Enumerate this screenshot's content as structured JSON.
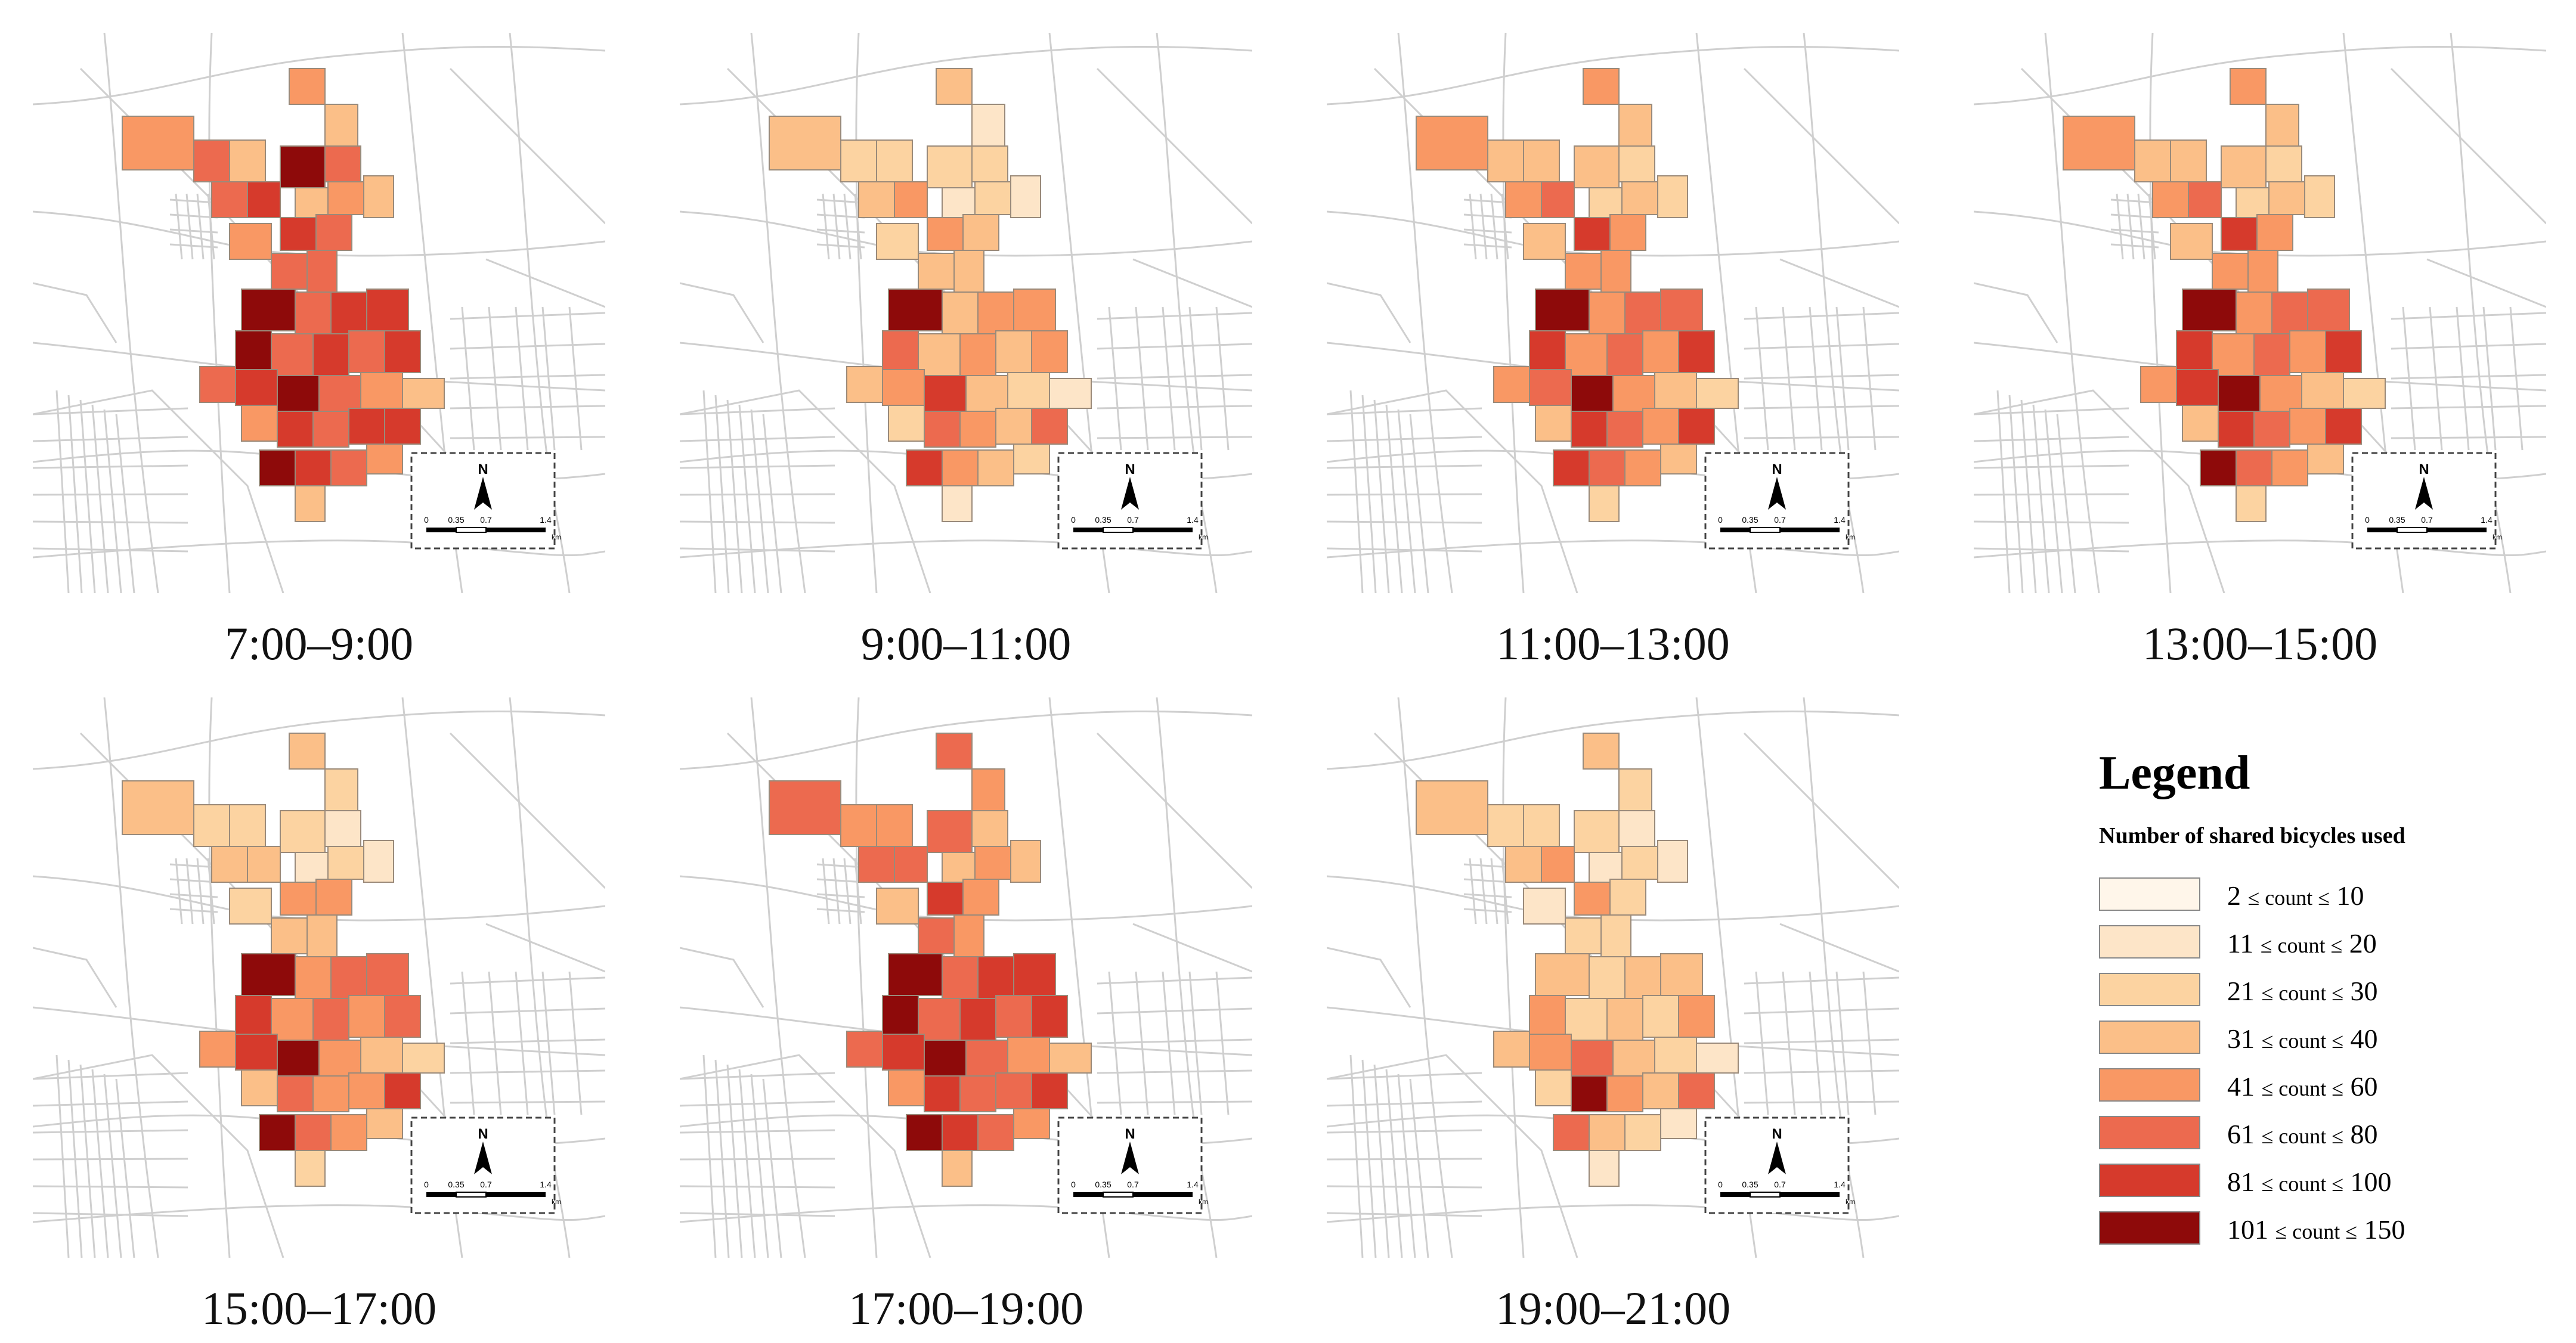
{
  "panels": [
    {
      "caption": "7:00–9:00"
    },
    {
      "caption": "9:00–11:00"
    },
    {
      "caption": "11:00–13:00"
    },
    {
      "caption": "13:00–15:00"
    },
    {
      "caption": "15:00–17:00"
    },
    {
      "caption": "17:00–19:00"
    },
    {
      "caption": "19:00–21:00"
    }
  ],
  "inset": {
    "north_label": "N",
    "scale_ticks": [
      "0",
      "0.35",
      "0.7",
      "1.4"
    ],
    "scale_unit": "km"
  },
  "legend": {
    "title": "Legend",
    "subtitle": "Number of shared bicycles used",
    "items": [
      {
        "low": "2",
        "op": "≤ count ≤",
        "high": "10",
        "color": "#fff6ea"
      },
      {
        "low": "11",
        "op": "≤ count ≤",
        "high": "20",
        "color": "#fde5c8"
      },
      {
        "low": "21",
        "op": "≤ count ≤",
        "high": "30",
        "color": "#fcd3a1"
      },
      {
        "low": "31",
        "op": "≤ count ≤",
        "high": "40",
        "color": "#fbbf88"
      },
      {
        "low": "41",
        "op": "≤ count ≤",
        "high": "60",
        "color": "#f99864"
      },
      {
        "low": "61",
        "op": "≤ count ≤",
        "high": "80",
        "color": "#ec6a4f"
      },
      {
        "low": "81",
        "op": "≤ count ≤",
        "high": "100",
        "color": "#d63a2c"
      },
      {
        "low": "101",
        "op": "≤ count ≤",
        "high": "150",
        "color": "#8e0a0a"
      }
    ]
  },
  "zone_levels": [
    [
      4,
      3,
      7,
      5,
      3,
      4,
      3,
      4,
      5,
      3,
      5,
      6,
      6,
      5,
      4,
      5,
      5,
      7,
      5,
      6,
      6,
      7,
      5,
      6,
      5,
      6,
      5,
      6,
      7,
      5,
      4,
      3,
      4,
      6,
      5,
      6,
      6,
      7,
      6,
      5,
      4,
      3
    ],
    [
      3,
      1,
      2,
      2,
      1,
      2,
      1,
      3,
      2,
      2,
      3,
      4,
      4,
      3,
      2,
      3,
      3,
      7,
      3,
      4,
      4,
      5,
      3,
      4,
      3,
      4,
      3,
      4,
      6,
      3,
      2,
      1,
      2,
      5,
      4,
      3,
      5,
      6,
      4,
      3,
      2,
      1
    ],
    [
      4,
      3,
      3,
      2,
      2,
      3,
      2,
      4,
      3,
      3,
      4,
      5,
      6,
      4,
      3,
      4,
      4,
      7,
      4,
      5,
      5,
      6,
      4,
      5,
      4,
      6,
      4,
      5,
      7,
      4,
      3,
      2,
      3,
      6,
      5,
      4,
      6,
      6,
      5,
      4,
      3,
      2
    ],
    [
      4,
      3,
      3,
      2,
      2,
      3,
      2,
      4,
      3,
      3,
      4,
      5,
      6,
      4,
      3,
      4,
      4,
      7,
      4,
      5,
      5,
      6,
      4,
      5,
      4,
      6,
      4,
      6,
      7,
      4,
      3,
      2,
      3,
      6,
      5,
      4,
      6,
      7,
      5,
      4,
      3,
      2
    ],
    [
      3,
      2,
      2,
      1,
      1,
      2,
      1,
      3,
      2,
      2,
      3,
      3,
      4,
      4,
      2,
      3,
      3,
      7,
      4,
      5,
      5,
      6,
      4,
      5,
      4,
      5,
      4,
      6,
      7,
      4,
      3,
      2,
      3,
      5,
      4,
      4,
      6,
      7,
      5,
      4,
      3,
      2
    ],
    [
      5,
      4,
      5,
      3,
      3,
      4,
      3,
      5,
      4,
      4,
      5,
      5,
      6,
      4,
      3,
      5,
      4,
      7,
      5,
      6,
      6,
      7,
      5,
      6,
      5,
      6,
      5,
      6,
      7,
      5,
      4,
      3,
      4,
      6,
      5,
      5,
      6,
      7,
      6,
      5,
      4,
      3
    ],
    [
      3,
      2,
      2,
      1,
      1,
      2,
      1,
      3,
      2,
      2,
      3,
      4,
      4,
      2,
      1,
      2,
      2,
      3,
      2,
      3,
      3,
      4,
      2,
      3,
      2,
      4,
      3,
      4,
      5,
      3,
      2,
      1,
      2,
      7,
      4,
      3,
      5,
      5,
      3,
      2,
      1,
      1
    ]
  ]
}
